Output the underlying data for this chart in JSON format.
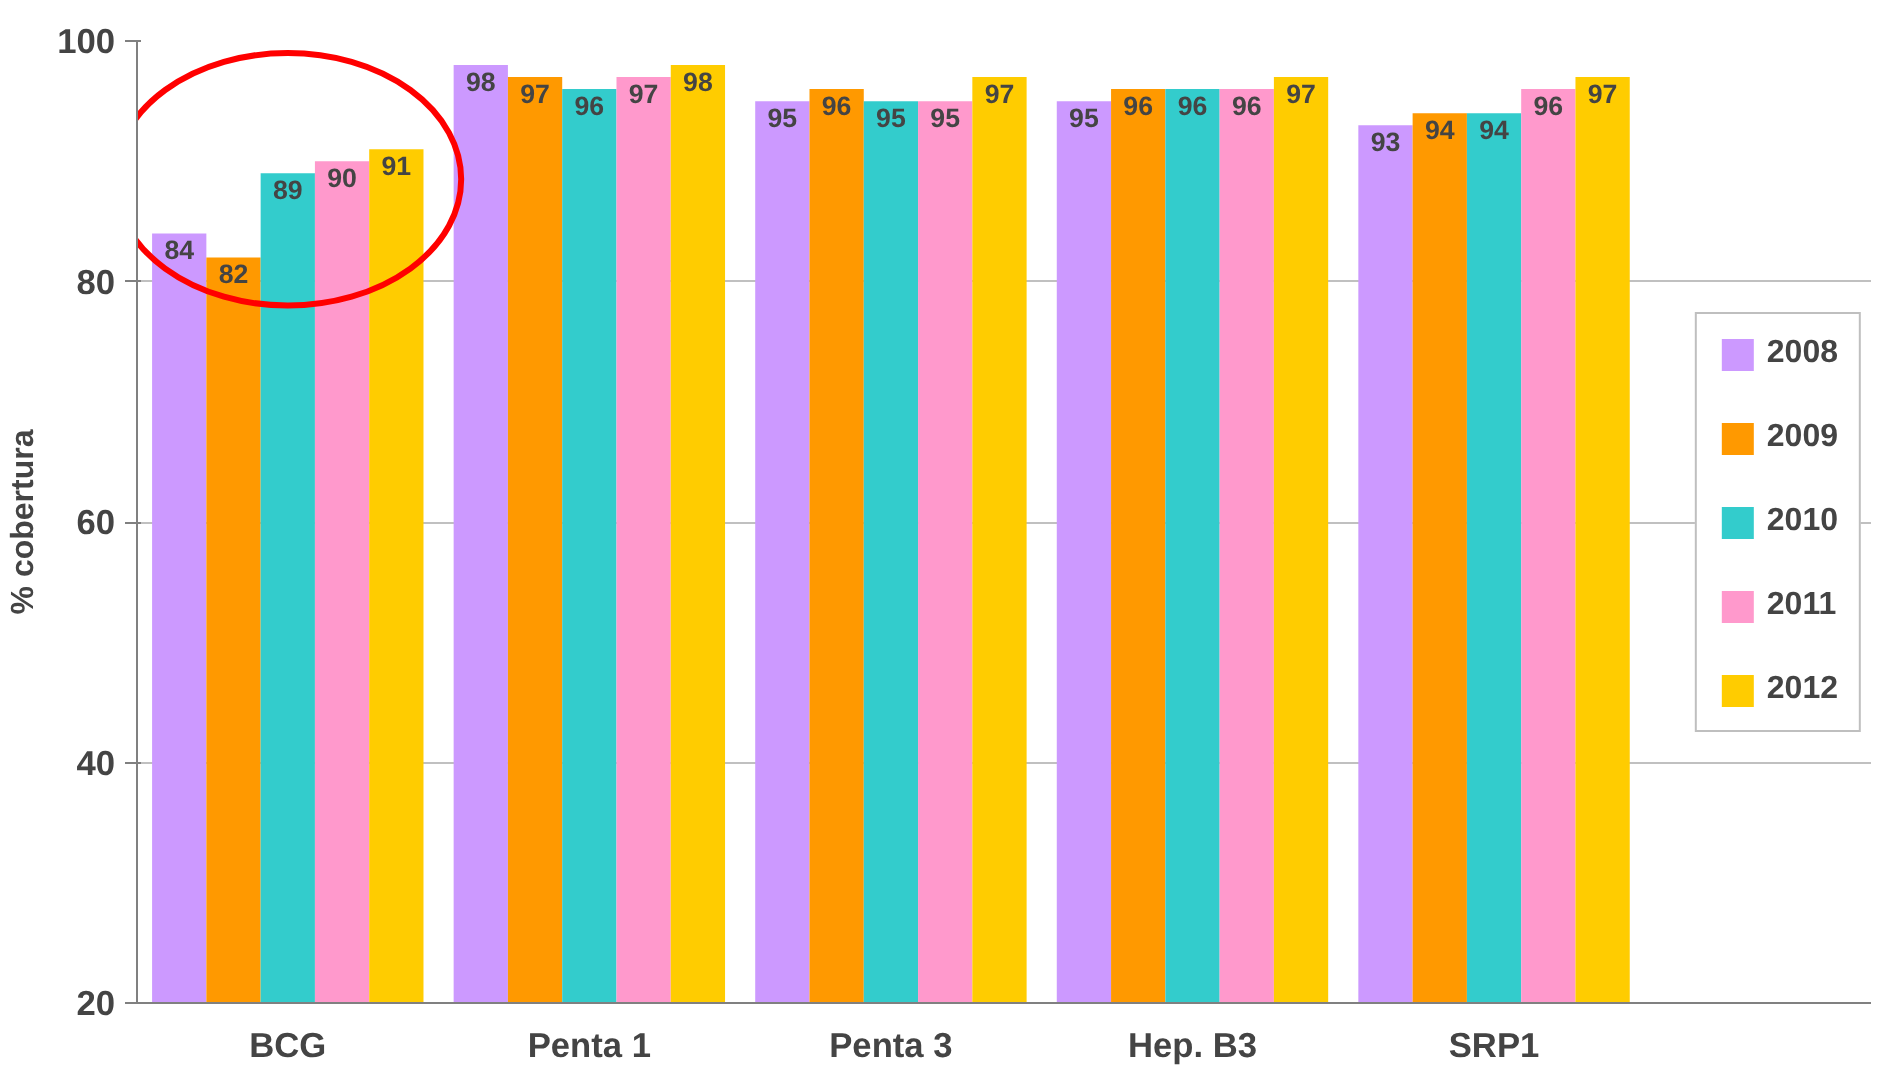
{
  "chart_data": {
    "type": "bar",
    "ylabel": "% cobertura",
    "categories": [
      "BCG",
      "Penta 1",
      "Penta 3",
      "Hep. B3",
      "SRP1"
    ],
    "series": [
      {
        "name": "2008",
        "color": "#cc99ff",
        "values": [
          84,
          98,
          95,
          95,
          93
        ]
      },
      {
        "name": "2009",
        "color": "#ff9900",
        "values": [
          82,
          97,
          96,
          96,
          94
        ]
      },
      {
        "name": "2010",
        "color": "#33cccc",
        "values": [
          89,
          96,
          95,
          96,
          94
        ]
      },
      {
        "name": "2011",
        "color": "#ff99cc",
        "values": [
          90,
          97,
          95,
          96,
          96
        ]
      },
      {
        "name": "2012",
        "color": "#ffcc00",
        "values": [
          91,
          98,
          97,
          97,
          97
        ]
      }
    ],
    "ylim": [
      20,
      100
    ],
    "yticks": [
      20,
      40,
      60,
      80,
      100
    ],
    "grid": "y",
    "legend": "right",
    "data_labels": true
  }
}
